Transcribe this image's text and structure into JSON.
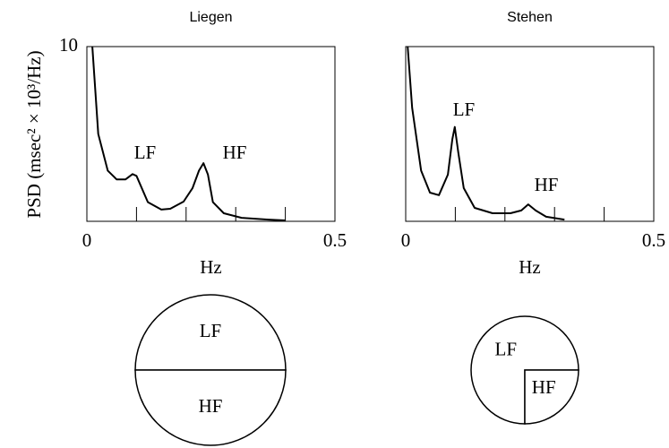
{
  "chart_data": [
    {
      "type": "line",
      "title": "Liegen",
      "ylabel": "PSD (msec² × 10³/Hz)",
      "xlabel": "Hz",
      "xlim": [
        0,
        0.5
      ],
      "xticks": [
        0,
        0.5
      ],
      "minor_xticks": [
        0.1,
        0.2,
        0.3,
        0.4
      ],
      "ylim": [
        0,
        10
      ],
      "yticks": [
        10
      ],
      "color": "#000000",
      "annotations": [
        "LF",
        "HF"
      ],
      "x": [
        0.011,
        0.023,
        0.042,
        0.06,
        0.078,
        0.092,
        0.1,
        0.123,
        0.15,
        0.168,
        0.195,
        0.213,
        0.226,
        0.235,
        0.244,
        0.254,
        0.276,
        0.312,
        0.366,
        0.4
      ],
      "values": [
        10,
        5.0,
        2.9,
        2.4,
        2.4,
        2.7,
        2.6,
        1.1,
        0.67,
        0.72,
        1.13,
        1.9,
        2.9,
        3.33,
        2.67,
        1.1,
        0.46,
        0.2,
        0.1,
        0.05
      ]
    },
    {
      "type": "line",
      "title": "Stehen",
      "xlabel": "Hz",
      "xlim": [
        0,
        0.5
      ],
      "xticks": [
        0,
        0.5
      ],
      "minor_xticks": [
        0.1,
        0.2,
        0.3,
        0.4
      ],
      "ylim": [
        0,
        10
      ],
      "color": "#000000",
      "annotations": [
        "LF",
        "HF"
      ],
      "x": [
        0.004,
        0.013,
        0.031,
        0.049,
        0.067,
        0.085,
        0.094,
        0.099,
        0.106,
        0.117,
        0.139,
        0.175,
        0.211,
        0.233,
        0.247,
        0.262,
        0.283,
        0.32
      ],
      "values": [
        10,
        6.5,
        2.9,
        1.64,
        1.5,
        2.67,
        4.7,
        5.4,
        3.95,
        1.9,
        0.77,
        0.46,
        0.46,
        0.62,
        0.97,
        0.62,
        0.26,
        0.1
      ]
    },
    {
      "type": "pie",
      "categories": [
        "LF",
        "HF"
      ],
      "values": [
        50,
        50
      ]
    },
    {
      "type": "pie",
      "categories": [
        "LF",
        "HF"
      ],
      "values": [
        75,
        25
      ]
    }
  ]
}
